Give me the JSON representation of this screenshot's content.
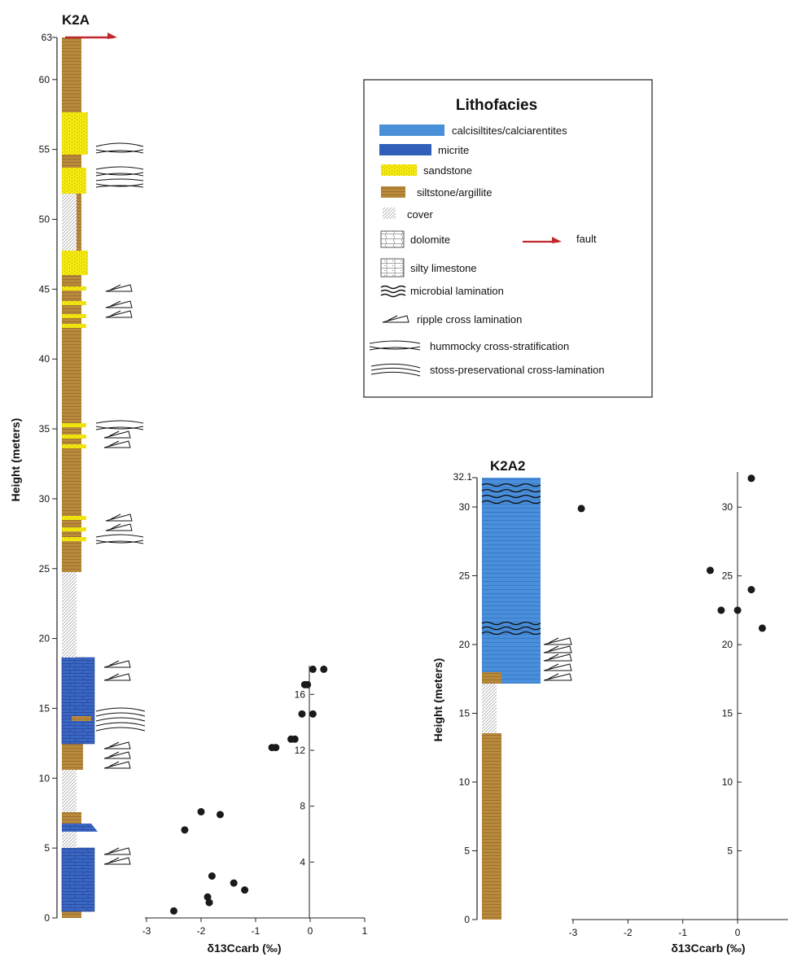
{
  "colors": {
    "calcisiltite": "#4a90d9",
    "micrite": "#2f5fb8",
    "sandstone": "#f5ea10",
    "siltstone": "#b98a3c",
    "cover": "#c8c8c8",
    "fault": "#c0282c",
    "dot": "#1a1a1a"
  },
  "columns": {
    "k2a": {
      "title": "K2A",
      "ylabel": "Height (meters)",
      "top_label": "63",
      "ticks": [
        0,
        5,
        10,
        15,
        20,
        25,
        30,
        35,
        40,
        45,
        50,
        55,
        60
      ]
    },
    "k2a2": {
      "title": "K2A2",
      "ylabel": "Height (meters)",
      "top_label": "32.1",
      "ticks": [
        0,
        5,
        10,
        15,
        20,
        25,
        30
      ]
    }
  },
  "legend": {
    "title": "Lithofacies",
    "items": [
      {
        "label": "calcisiltites/calciarentites",
        "icon": "calcisiltite-swatch"
      },
      {
        "label": "micrite",
        "icon": "micrite-swatch"
      },
      {
        "label": "sandstone",
        "icon": "sandstone-swatch"
      },
      {
        "label": "siltstone/argillite",
        "icon": "siltstone-swatch"
      },
      {
        "label": "cover",
        "icon": "cover-swatch"
      },
      {
        "label": "dolomite",
        "icon": "dolomite-swatch"
      },
      {
        "label": "silty limestone",
        "icon": "silty-limestone-swatch"
      },
      {
        "label": "microbial lamination",
        "icon": "microbial-lamination-icon"
      },
      {
        "label": "ripple cross lamination",
        "icon": "ripple-icon"
      },
      {
        "label": "hummocky cross-stratification",
        "icon": "hummocky-icon"
      },
      {
        "label": "stoss-preservational cross-lamination",
        "icon": "stoss-icon"
      }
    ],
    "fault_label": "fault"
  },
  "chart_data": [
    {
      "type": "scatter",
      "title": "",
      "xlabel": "δ13Ccarb (‰)",
      "ylabel": "",
      "x_ticks": [
        -3,
        -2,
        -1,
        0,
        1
      ],
      "y_ticks": [
        4,
        8,
        12,
        16
      ],
      "xlim": [
        -3,
        1
      ],
      "ylim": [
        0,
        18
      ],
      "points": [
        {
          "x": -2.5,
          "y": 0.5
        },
        {
          "x": -1.85,
          "y": 1.1
        },
        {
          "x": -1.88,
          "y": 1.5
        },
        {
          "x": -1.2,
          "y": 2.0
        },
        {
          "x": -1.4,
          "y": 2.5
        },
        {
          "x": -1.8,
          "y": 3.0
        },
        {
          "x": -2.3,
          "y": 6.3
        },
        {
          "x": -2.0,
          "y": 7.6
        },
        {
          "x": -1.65,
          "y": 7.4
        },
        {
          "x": -0.7,
          "y": 12.2
        },
        {
          "x": -0.63,
          "y": 12.2
        },
        {
          "x": -0.35,
          "y": 12.8
        },
        {
          "x": -0.28,
          "y": 12.8
        },
        {
          "x": -0.15,
          "y": 14.6
        },
        {
          "x": 0.05,
          "y": 14.6
        },
        {
          "x": -0.1,
          "y": 16.7
        },
        {
          "x": -0.05,
          "y": 16.7
        },
        {
          "x": 0.05,
          "y": 17.8
        },
        {
          "x": 0.25,
          "y": 17.8
        }
      ]
    },
    {
      "type": "scatter",
      "title": "",
      "xlabel": "δ13Ccarb (‰)",
      "ylabel": "",
      "x_ticks": [
        -3,
        -2,
        -1,
        0
      ],
      "y_ticks": [
        5,
        10,
        15,
        20,
        25,
        30
      ],
      "xlim": [
        -3,
        0.8
      ],
      "ylim": [
        0,
        32.5
      ],
      "points": [
        {
          "x": -2.85,
          "y": 29.9
        },
        {
          "x": 0.25,
          "y": 32.1
        },
        {
          "x": -0.5,
          "y": 25.4
        },
        {
          "x": 0.25,
          "y": 24.0
        },
        {
          "x": -0.3,
          "y": 22.5
        },
        {
          "x": 0.0,
          "y": 22.5
        },
        {
          "x": 0.45,
          "y": 21.2
        }
      ]
    }
  ]
}
